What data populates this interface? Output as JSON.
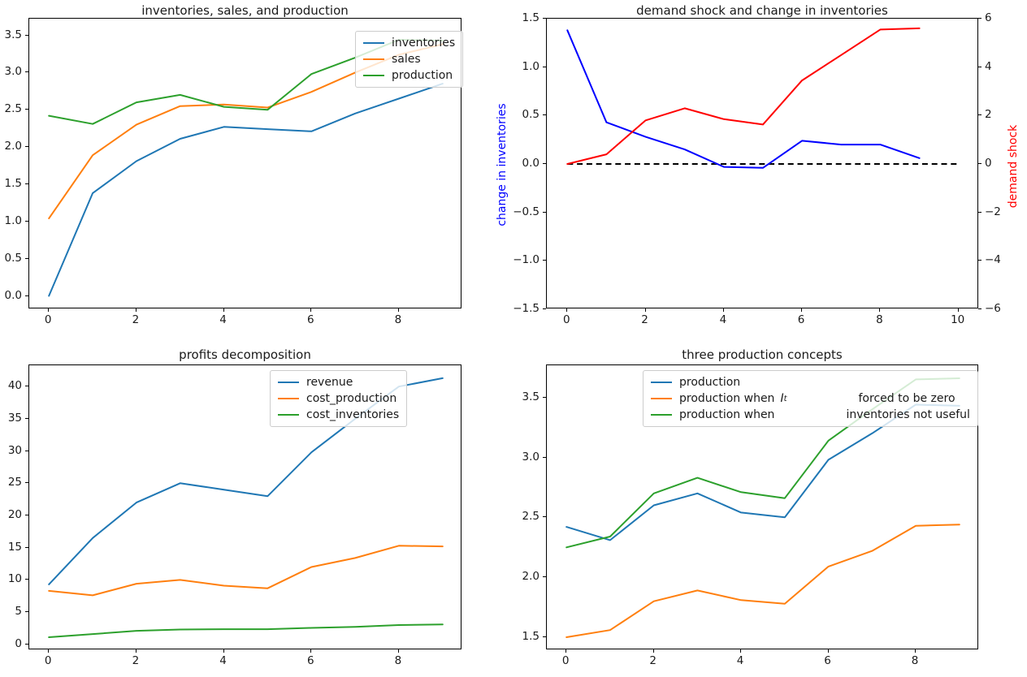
{
  "figure": {
    "background": "#ffffff",
    "accent_colors": {
      "mpl_blue": "#1f77b4",
      "mpl_orange": "#ff7f0e",
      "mpl_green": "#2ca02c",
      "pure_blue": "#0000ff",
      "pure_red": "#ff0000",
      "black": "#000000"
    }
  },
  "chart_data": [
    {
      "id": "inventories-sales-production",
      "type": "line",
      "title": "inventories, sales, and production",
      "xlim": [
        -0.45,
        9.45
      ],
      "ylim": [
        -0.18,
        3.724
      ],
      "grid": false,
      "xticks": {
        "values": [
          0,
          2,
          4,
          6,
          8
        ],
        "labels": [
          "0",
          "2",
          "4",
          "6",
          "8"
        ]
      },
      "yticks": {
        "values": [
          0.0,
          0.5,
          1.0,
          1.5,
          2.0,
          2.5,
          3.0,
          3.5
        ],
        "labels": [
          "0.0",
          "0.5",
          "1.0",
          "1.5",
          "2.0",
          "2.5",
          "3.0",
          "3.5"
        ]
      },
      "series": [
        {
          "name": "inventories",
          "color": "#1f77b4",
          "x": [
            0,
            1,
            2,
            3,
            4,
            5,
            6,
            7,
            8,
            9
          ],
          "values": [
            0.0,
            1.38,
            1.81,
            2.11,
            2.27,
            2.24,
            2.21,
            2.45,
            2.65,
            2.85
          ]
        },
        {
          "name": "sales",
          "color": "#ff7f0e",
          "x": [
            0,
            1,
            2,
            3,
            4,
            5,
            6,
            7,
            8,
            9
          ],
          "values": [
            1.04,
            1.89,
            2.3,
            2.55,
            2.57,
            2.53,
            2.74,
            3.0,
            3.24,
            3.38
          ]
        },
        {
          "name": "production",
          "color": "#2ca02c",
          "x": [
            0,
            1,
            2,
            3,
            4,
            5,
            6,
            7,
            8,
            9
          ],
          "values": [
            2.42,
            2.31,
            2.6,
            2.7,
            2.54,
            2.5,
            2.98,
            3.2,
            3.44,
            3.43
          ]
        }
      ],
      "legend": {
        "position": "upper right",
        "items": [
          {
            "color": "#1f77b4",
            "parts": [
              {
                "text": "inventories"
              }
            ]
          },
          {
            "color": "#ff7f0e",
            "parts": [
              {
                "text": "sales"
              }
            ]
          },
          {
            "color": "#2ca02c",
            "parts": [
              {
                "text": "production"
              }
            ]
          }
        ]
      }
    },
    {
      "id": "demand-shock-change-inventories",
      "type": "line",
      "title": "demand shock and change in inventories",
      "ylabel_left": "change in inventories",
      "ylabel_left_color": "#0000ff",
      "ylabel_right": "demand shock",
      "ylabel_right_color": "#ff0000",
      "xlim": [
        -0.525,
        10.525
      ],
      "ylim": [
        -1.5,
        1.5
      ],
      "ylim_right": [
        -6,
        6
      ],
      "grid": false,
      "xticks": {
        "values": [
          0,
          2,
          4,
          6,
          8,
          10
        ],
        "labels": [
          "0",
          "2",
          "4",
          "6",
          "8",
          "10"
        ]
      },
      "yticks": {
        "values": [
          1.5,
          1.0,
          0.5,
          0.0,
          -0.5,
          -1.0,
          -1.5
        ],
        "labels": [
          "1.5",
          "1.0",
          "0.5",
          "0.0",
          "−0.5",
          "−1.0",
          "−1.5"
        ]
      },
      "yticks_right": {
        "values": [
          6,
          4,
          2,
          0,
          -2,
          -4,
          -6
        ],
        "labels": [
          "6",
          "4",
          "2",
          "0",
          "−2",
          "−4",
          "−6"
        ]
      },
      "series": [
        {
          "name": "zero line",
          "color": "#000000",
          "dash": true,
          "x": [
            0,
            10
          ],
          "values": [
            0,
            0
          ]
        },
        {
          "name": "change in inventories",
          "color": "#0000ff",
          "x": [
            0,
            1,
            2,
            3,
            4,
            5,
            6,
            7,
            8,
            9
          ],
          "values": [
            1.38,
            0.43,
            0.28,
            0.15,
            -0.03,
            -0.04,
            0.24,
            0.2,
            0.2,
            0.06
          ]
        },
        {
          "name": "demand shock",
          "color": "#ff0000",
          "axis": "right",
          "x": [
            0,
            1,
            2,
            3,
            4,
            5,
            6,
            7,
            8,
            9
          ],
          "values": [
            0.0,
            0.4,
            1.8,
            2.3,
            1.85,
            1.63,
            3.45,
            4.5,
            5.55,
            5.6
          ]
        }
      ]
    },
    {
      "id": "profits-decomposition",
      "type": "line",
      "title": "profits decomposition",
      "xlim": [
        -0.45,
        9.45
      ],
      "ylim": [
        -0.91,
        43.3
      ],
      "grid": false,
      "xticks": {
        "values": [
          0,
          2,
          4,
          6,
          8
        ],
        "labels": [
          "0",
          "2",
          "4",
          "6",
          "8"
        ]
      },
      "yticks": {
        "values": [
          0,
          5,
          10,
          15,
          20,
          25,
          30,
          35,
          40
        ],
        "labels": [
          "0",
          "5",
          "10",
          "15",
          "20",
          "25",
          "30",
          "35",
          "40"
        ]
      },
      "series": [
        {
          "name": "revenue",
          "color": "#1f77b4",
          "x": [
            0,
            1,
            2,
            3,
            4,
            5,
            6,
            7,
            8,
            9
          ],
          "values": [
            9.3,
            16.5,
            22.0,
            25.0,
            24.0,
            23.0,
            29.8,
            35.0,
            40.0,
            41.3
          ]
        },
        {
          "name": "cost_production",
          "color": "#ff7f0e",
          "x": [
            0,
            1,
            2,
            3,
            4,
            5,
            6,
            7,
            8,
            9
          ],
          "values": [
            8.3,
            7.6,
            9.4,
            10.0,
            9.1,
            8.7,
            12.0,
            13.4,
            15.3,
            15.2
          ]
        },
        {
          "name": "cost_inventories",
          "color": "#2ca02c",
          "x": [
            0,
            1,
            2,
            3,
            4,
            5,
            6,
            7,
            8,
            9
          ],
          "values": [
            1.1,
            1.6,
            2.1,
            2.3,
            2.35,
            2.35,
            2.55,
            2.7,
            3.0,
            3.1
          ]
        }
      ],
      "legend": {
        "position": "upper right",
        "items": [
          {
            "color": "#1f77b4",
            "parts": [
              {
                "text": "revenue"
              }
            ]
          },
          {
            "color": "#ff7f0e",
            "parts": [
              {
                "text": "cost_production"
              }
            ]
          },
          {
            "color": "#2ca02c",
            "parts": [
              {
                "text": "cost_inventories"
              }
            ]
          }
        ]
      }
    },
    {
      "id": "three-production-concepts",
      "type": "line",
      "title": "three production concepts",
      "xlim": [
        -0.45,
        9.45
      ],
      "ylim": [
        1.392,
        3.768
      ],
      "grid": false,
      "xticks": {
        "values": [
          0,
          2,
          4,
          6,
          8
        ],
        "labels": [
          "0",
          "2",
          "4",
          "6",
          "8"
        ]
      },
      "yticks": {
        "values": [
          1.5,
          2.0,
          2.5,
          3.0,
          3.5
        ],
        "labels": [
          "1.5",
          "2.0",
          "2.5",
          "3.0",
          "3.5"
        ]
      },
      "series": [
        {
          "name": "production",
          "color": "#1f77b4",
          "x": [
            0,
            1,
            2,
            3,
            4,
            5,
            6,
            7,
            8,
            9
          ],
          "values": [
            2.42,
            2.31,
            2.6,
            2.7,
            2.54,
            2.5,
            2.98,
            3.2,
            3.44,
            3.43
          ]
        },
        {
          "name": "production when It forced to be zero",
          "color": "#ff7f0e",
          "x": [
            0,
            1,
            2,
            3,
            4,
            5,
            6,
            7,
            8,
            9
          ],
          "values": [
            1.5,
            1.56,
            1.8,
            1.89,
            1.81,
            1.78,
            2.09,
            2.22,
            2.43,
            2.44
          ]
        },
        {
          "name": "production when inventories not useful",
          "color": "#2ca02c",
          "x": [
            0,
            1,
            2,
            3,
            4,
            5,
            6,
            7,
            8,
            9
          ],
          "values": [
            2.25,
            2.34,
            2.7,
            2.83,
            2.71,
            2.66,
            3.14,
            3.4,
            3.65,
            3.66
          ]
        }
      ],
      "legend": {
        "position": "upper center-right",
        "items": [
          {
            "color": "#1f77b4",
            "parts": [
              {
                "text": "production"
              }
            ]
          },
          {
            "color": "#ff7f0e",
            "parts": [
              {
                "text": "production when"
              },
              {
                "text": "I",
                "math": true
              },
              {
                "text": "t",
                "sub": true
              },
              {
                "text": "forced to be zero",
                "gap": true
              }
            ]
          },
          {
            "color": "#2ca02c",
            "parts": [
              {
                "text": "production when"
              },
              {
                "text": "inventories not useful",
                "gap": true
              }
            ]
          }
        ]
      }
    }
  ]
}
